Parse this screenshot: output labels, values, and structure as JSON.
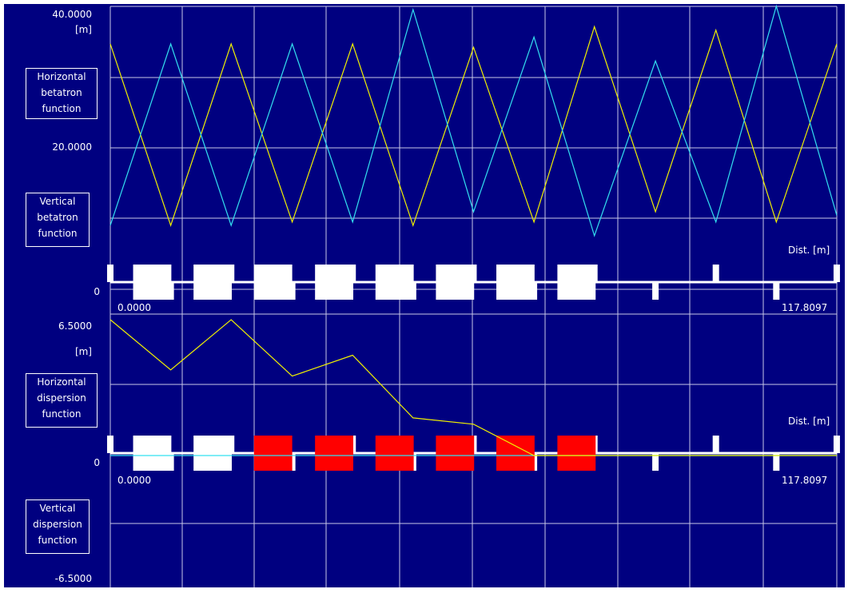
{
  "colors": {
    "background": "#000080",
    "grid": "#c8c8e6",
    "horizontal_curve": "#f0f000",
    "vertical_curve": "#33e0f0",
    "magnet_white": "#ffffff",
    "magnet_red": "#ff0000"
  },
  "top_panel": {
    "y_max_label": "40.0000",
    "unit_label": "[m]",
    "y_mid_label": "20.0000",
    "zero_label": "0",
    "box_horizontal": [
      "Horizontal",
      "betatron",
      "function"
    ],
    "box_vertical": [
      "Vertical",
      "betatron",
      "function"
    ],
    "dist_label": "Dist. [m]",
    "s_start_label": "0.0000",
    "s_end_label": "117.8097"
  },
  "bottom_panel": {
    "y_max_label": "6.5000",
    "unit_label": "[m]",
    "zero_label": "0",
    "y_min_label": "-6.5000",
    "box_horizontal": [
      "Horizontal",
      "dispersion",
      "function"
    ],
    "box_vertical": [
      "Vertical",
      "dispersion",
      "function"
    ],
    "dist_label": "Dist. [m]",
    "s_start_label": "0.0000",
    "s_end_label": "117.8097"
  },
  "chart_data": [
    {
      "type": "line",
      "xlabel": "Dist. [m]",
      "ylabel": "[m]",
      "xlim": [
        0,
        117.8097
      ],
      "ylim": [
        0,
        40
      ],
      "series": [
        {
          "name": "Horizontal betatron function",
          "x": [
            0,
            9.8,
            19.6,
            29.5,
            39.3,
            49.1,
            58.9,
            68.7,
            78.5,
            88.4,
            98.2,
            108,
            117.8
          ],
          "y": [
            35,
            8.5,
            35,
            9,
            35,
            8.5,
            34.5,
            9,
            37.5,
            10.5,
            37,
            9,
            35
          ]
        },
        {
          "name": "Vertical betatron function",
          "x": [
            0,
            9.8,
            19.6,
            29.5,
            39.3,
            49.1,
            58.9,
            68.7,
            78.5,
            88.4,
            98.2,
            108,
            117.8
          ],
          "y": [
            8.5,
            35,
            8.5,
            35,
            9,
            40,
            10.5,
            36,
            7,
            32.5,
            9,
            40.5,
            10
          ]
        }
      ]
    },
    {
      "type": "line",
      "xlabel": "Dist. [m]",
      "ylabel": "[m]",
      "xlim": [
        0,
        117.8097
      ],
      "ylim": [
        -6.5,
        6.5
      ],
      "series": [
        {
          "name": "Horizontal dispersion function",
          "x": [
            0,
            9.8,
            19.6,
            29.5,
            39.3,
            49.1,
            58.9,
            68.7,
            78.5,
            88.4,
            98.2,
            108,
            117.8
          ],
          "y": [
            6.5,
            4.1,
            6.5,
            3.8,
            4.8,
            1.8,
            1.5,
            0,
            0,
            0,
            0,
            0,
            0
          ]
        },
        {
          "name": "Vertical dispersion function",
          "x": [
            0,
            117.8097
          ],
          "y": [
            0,
            0
          ]
        }
      ]
    }
  ],
  "lattice": {
    "large_magnets_s": [
      3.7,
      13.5,
      23.3,
      33.2,
      43.0,
      52.8,
      62.6,
      72.5
    ],
    "bottom_red_magnets_from_index": 2,
    "small_markers_up_s": [
      0,
      19.6,
      39.3,
      58.9,
      78.5,
      98.2,
      117.8
    ],
    "small_markers_down_s": [
      9.8,
      29.5,
      49.1,
      68.7,
      88.4,
      108
    ]
  }
}
